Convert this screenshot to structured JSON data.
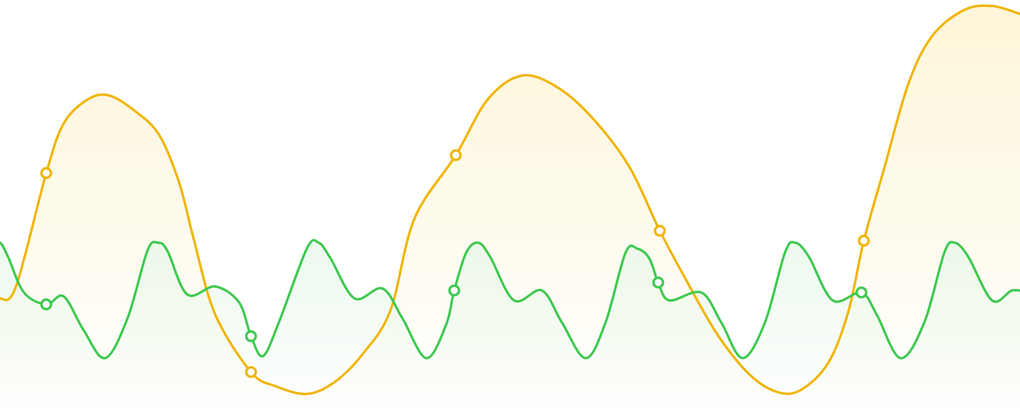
{
  "chart_data": {
    "type": "line",
    "title": "",
    "xlabel": "",
    "ylabel": "",
    "grid": false,
    "legend": "none",
    "series": [
      {
        "color": "#f0b400",
        "fill_color": "#fdf3cc",
        "points": [
          [
            -10,
            2.6
          ],
          [
            0,
            2.4
          ],
          [
            20,
            2.7
          ],
          [
            58,
            5.55
          ],
          [
            80,
            6.8
          ],
          [
            110,
            7.4
          ],
          [
            137,
            7.5
          ],
          [
            170,
            7.1
          ],
          [
            200,
            6.5
          ],
          [
            225,
            5.3
          ],
          [
            243,
            3.9
          ],
          [
            270,
            2.0
          ],
          [
            315,
            0.55
          ],
          [
            345,
            0.2
          ],
          [
            385,
            0.0
          ],
          [
            420,
            0.3
          ],
          [
            455,
            1.0
          ],
          [
            490,
            2.1
          ],
          [
            520,
            4.4
          ],
          [
            572,
            6.0
          ],
          [
            612,
            7.4
          ],
          [
            655,
            8.0
          ],
          [
            700,
            7.7
          ],
          [
            745,
            6.9
          ],
          [
            790,
            5.7
          ],
          [
            828,
            4.1
          ],
          [
            860,
            2.9
          ],
          [
            900,
            1.5
          ],
          [
            940,
            0.5
          ],
          [
            975,
            0.05
          ],
          [
            1005,
            0.1
          ],
          [
            1040,
            0.8
          ],
          [
            1065,
            2.1
          ],
          [
            1084,
            3.85
          ],
          [
            1110,
            5.7
          ],
          [
            1140,
            7.8
          ],
          [
            1170,
            9.0
          ],
          [
            1210,
            9.65
          ],
          [
            1245,
            9.75
          ],
          [
            1280,
            9.55
          ]
        ],
        "markers": [
          [
            58,
            5.55
          ],
          [
            315,
            0.55
          ],
          [
            572,
            6.0
          ],
          [
            828,
            4.1
          ],
          [
            1084,
            3.85
          ]
        ]
      },
      {
        "color": "#3cc84f",
        "fill_color": "#e6f7e8",
        "points": [
          [
            -10,
            3.7
          ],
          [
            0,
            3.8
          ],
          [
            10,
            3.45
          ],
          [
            30,
            2.55
          ],
          [
            58,
            2.25
          ],
          [
            80,
            2.45
          ],
          [
            105,
            1.6
          ],
          [
            132,
            0.9
          ],
          [
            160,
            1.9
          ],
          [
            185,
            3.6
          ],
          [
            198,
            3.8
          ],
          [
            210,
            3.6
          ],
          [
            235,
            2.5
          ],
          [
            270,
            2.7
          ],
          [
            300,
            2.3
          ],
          [
            315,
            1.45
          ],
          [
            330,
            0.95
          ],
          [
            350,
            1.8
          ],
          [
            385,
            3.65
          ],
          [
            400,
            3.8
          ],
          [
            415,
            3.4
          ],
          [
            445,
            2.4
          ],
          [
            480,
            2.65
          ],
          [
            505,
            1.9
          ],
          [
            535,
            0.9
          ],
          [
            560,
            1.75
          ],
          [
            570,
            2.6
          ],
          [
            585,
            3.55
          ],
          [
            600,
            3.8
          ],
          [
            615,
            3.45
          ],
          [
            645,
            2.35
          ],
          [
            680,
            2.6
          ],
          [
            705,
            1.8
          ],
          [
            735,
            0.9
          ],
          [
            760,
            1.8
          ],
          [
            785,
            3.55
          ],
          [
            800,
            3.65
          ],
          [
            815,
            3.4
          ],
          [
            826,
            2.8
          ],
          [
            840,
            2.35
          ],
          [
            880,
            2.55
          ],
          [
            905,
            1.8
          ],
          [
            932,
            0.9
          ],
          [
            960,
            1.8
          ],
          [
            985,
            3.55
          ],
          [
            998,
            3.8
          ],
          [
            1015,
            3.45
          ],
          [
            1045,
            2.35
          ],
          [
            1081,
            2.55
          ],
          [
            1100,
            2.0
          ],
          [
            1130,
            0.9
          ],
          [
            1160,
            1.8
          ],
          [
            1185,
            3.55
          ],
          [
            1198,
            3.8
          ],
          [
            1215,
            3.45
          ],
          [
            1245,
            2.35
          ],
          [
            1270,
            2.6
          ],
          [
            1290,
            2.55
          ]
        ],
        "markers": [
          [
            58,
            2.25
          ],
          [
            315,
            1.45
          ],
          [
            570,
            2.6
          ],
          [
            826,
            2.8
          ],
          [
            1081,
            2.55
          ]
        ]
      }
    ],
    "xlim": [
      0,
      1280
    ],
    "ylim": [
      -0.3,
      9.9
    ]
  }
}
